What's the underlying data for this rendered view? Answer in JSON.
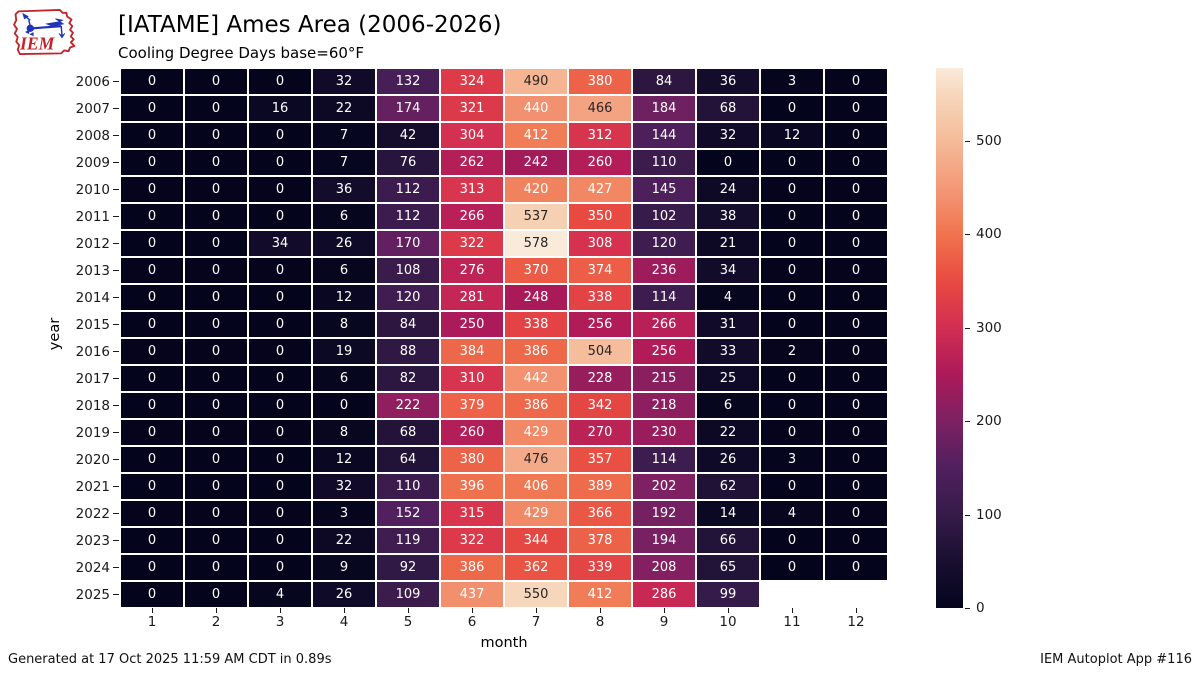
{
  "header": {
    "title": "[IATAME] Ames Area (2006-2026)",
    "subtitle": "Cooling Degree Days base=60°F"
  },
  "footer": {
    "left": "Generated at 17 Oct 2025 11:59 AM CDT in 0.89s",
    "right": "IEM Autoplot App #116"
  },
  "logo": {
    "name": "iem-logo",
    "text": "IEM",
    "accent_red": "#c2242c",
    "accent_blue": "#2233bb"
  },
  "chart_data": {
    "type": "heatmap",
    "title": "[IATAME] Ames Area (2006-2026)",
    "subtitle": "Cooling Degree Days base=60°F",
    "xlabel": "month",
    "ylabel": "year",
    "colormap": "rocket",
    "x_ticks": [
      "1",
      "2",
      "3",
      "4",
      "5",
      "6",
      "7",
      "8",
      "9",
      "10",
      "11",
      "12"
    ],
    "years": [
      2006,
      2007,
      2008,
      2009,
      2010,
      2011,
      2012,
      2013,
      2014,
      2015,
      2016,
      2017,
      2018,
      2019,
      2020,
      2021,
      2022,
      2023,
      2024,
      2025
    ],
    "values": [
      [
        0,
        0,
        0,
        32,
        132,
        324,
        490,
        380,
        84,
        36,
        3,
        0
      ],
      [
        0,
        0,
        16,
        22,
        174,
        321,
        440,
        466,
        184,
        68,
        0,
        0
      ],
      [
        0,
        0,
        0,
        7,
        42,
        304,
        412,
        312,
        144,
        32,
        12,
        0
      ],
      [
        0,
        0,
        0,
        7,
        76,
        262,
        242,
        260,
        110,
        0,
        0,
        0
      ],
      [
        0,
        0,
        0,
        36,
        112,
        313,
        420,
        427,
        145,
        24,
        0,
        0
      ],
      [
        0,
        0,
        0,
        6,
        112,
        266,
        537,
        350,
        102,
        38,
        0,
        0
      ],
      [
        0,
        0,
        34,
        26,
        170,
        322,
        578,
        308,
        120,
        21,
        0,
        0
      ],
      [
        0,
        0,
        0,
        6,
        108,
        276,
        370,
        374,
        236,
        34,
        0,
        0
      ],
      [
        0,
        0,
        0,
        12,
        120,
        281,
        248,
        338,
        114,
        4,
        0,
        0
      ],
      [
        0,
        0,
        0,
        8,
        84,
        250,
        338,
        256,
        266,
        31,
        0,
        0
      ],
      [
        0,
        0,
        0,
        19,
        88,
        384,
        386,
        504,
        256,
        33,
        2,
        0
      ],
      [
        0,
        0,
        0,
        6,
        82,
        310,
        442,
        228,
        215,
        25,
        0,
        0
      ],
      [
        0,
        0,
        0,
        0,
        222,
        379,
        386,
        342,
        218,
        6,
        0,
        0
      ],
      [
        0,
        0,
        0,
        8,
        68,
        260,
        429,
        270,
        230,
        22,
        0,
        0
      ],
      [
        0,
        0,
        0,
        12,
        64,
        380,
        476,
        357,
        114,
        26,
        3,
        0
      ],
      [
        0,
        0,
        0,
        32,
        110,
        396,
        406,
        389,
        202,
        62,
        0,
        0
      ],
      [
        0,
        0,
        0,
        3,
        152,
        315,
        429,
        366,
        192,
        14,
        4,
        0
      ],
      [
        0,
        0,
        0,
        22,
        119,
        322,
        344,
        378,
        194,
        66,
        0,
        0
      ],
      [
        0,
        0,
        0,
        9,
        92,
        386,
        362,
        339,
        208,
        65,
        0,
        0
      ],
      [
        0,
        0,
        4,
        26,
        109,
        437,
        550,
        412,
        286,
        99,
        null,
        null
      ]
    ],
    "colorbar": {
      "vmin": 0,
      "vmax": 578,
      "ticks": [
        0,
        100,
        200,
        300,
        400,
        500
      ],
      "position": "right"
    },
    "grid": false,
    "annotated": true
  }
}
